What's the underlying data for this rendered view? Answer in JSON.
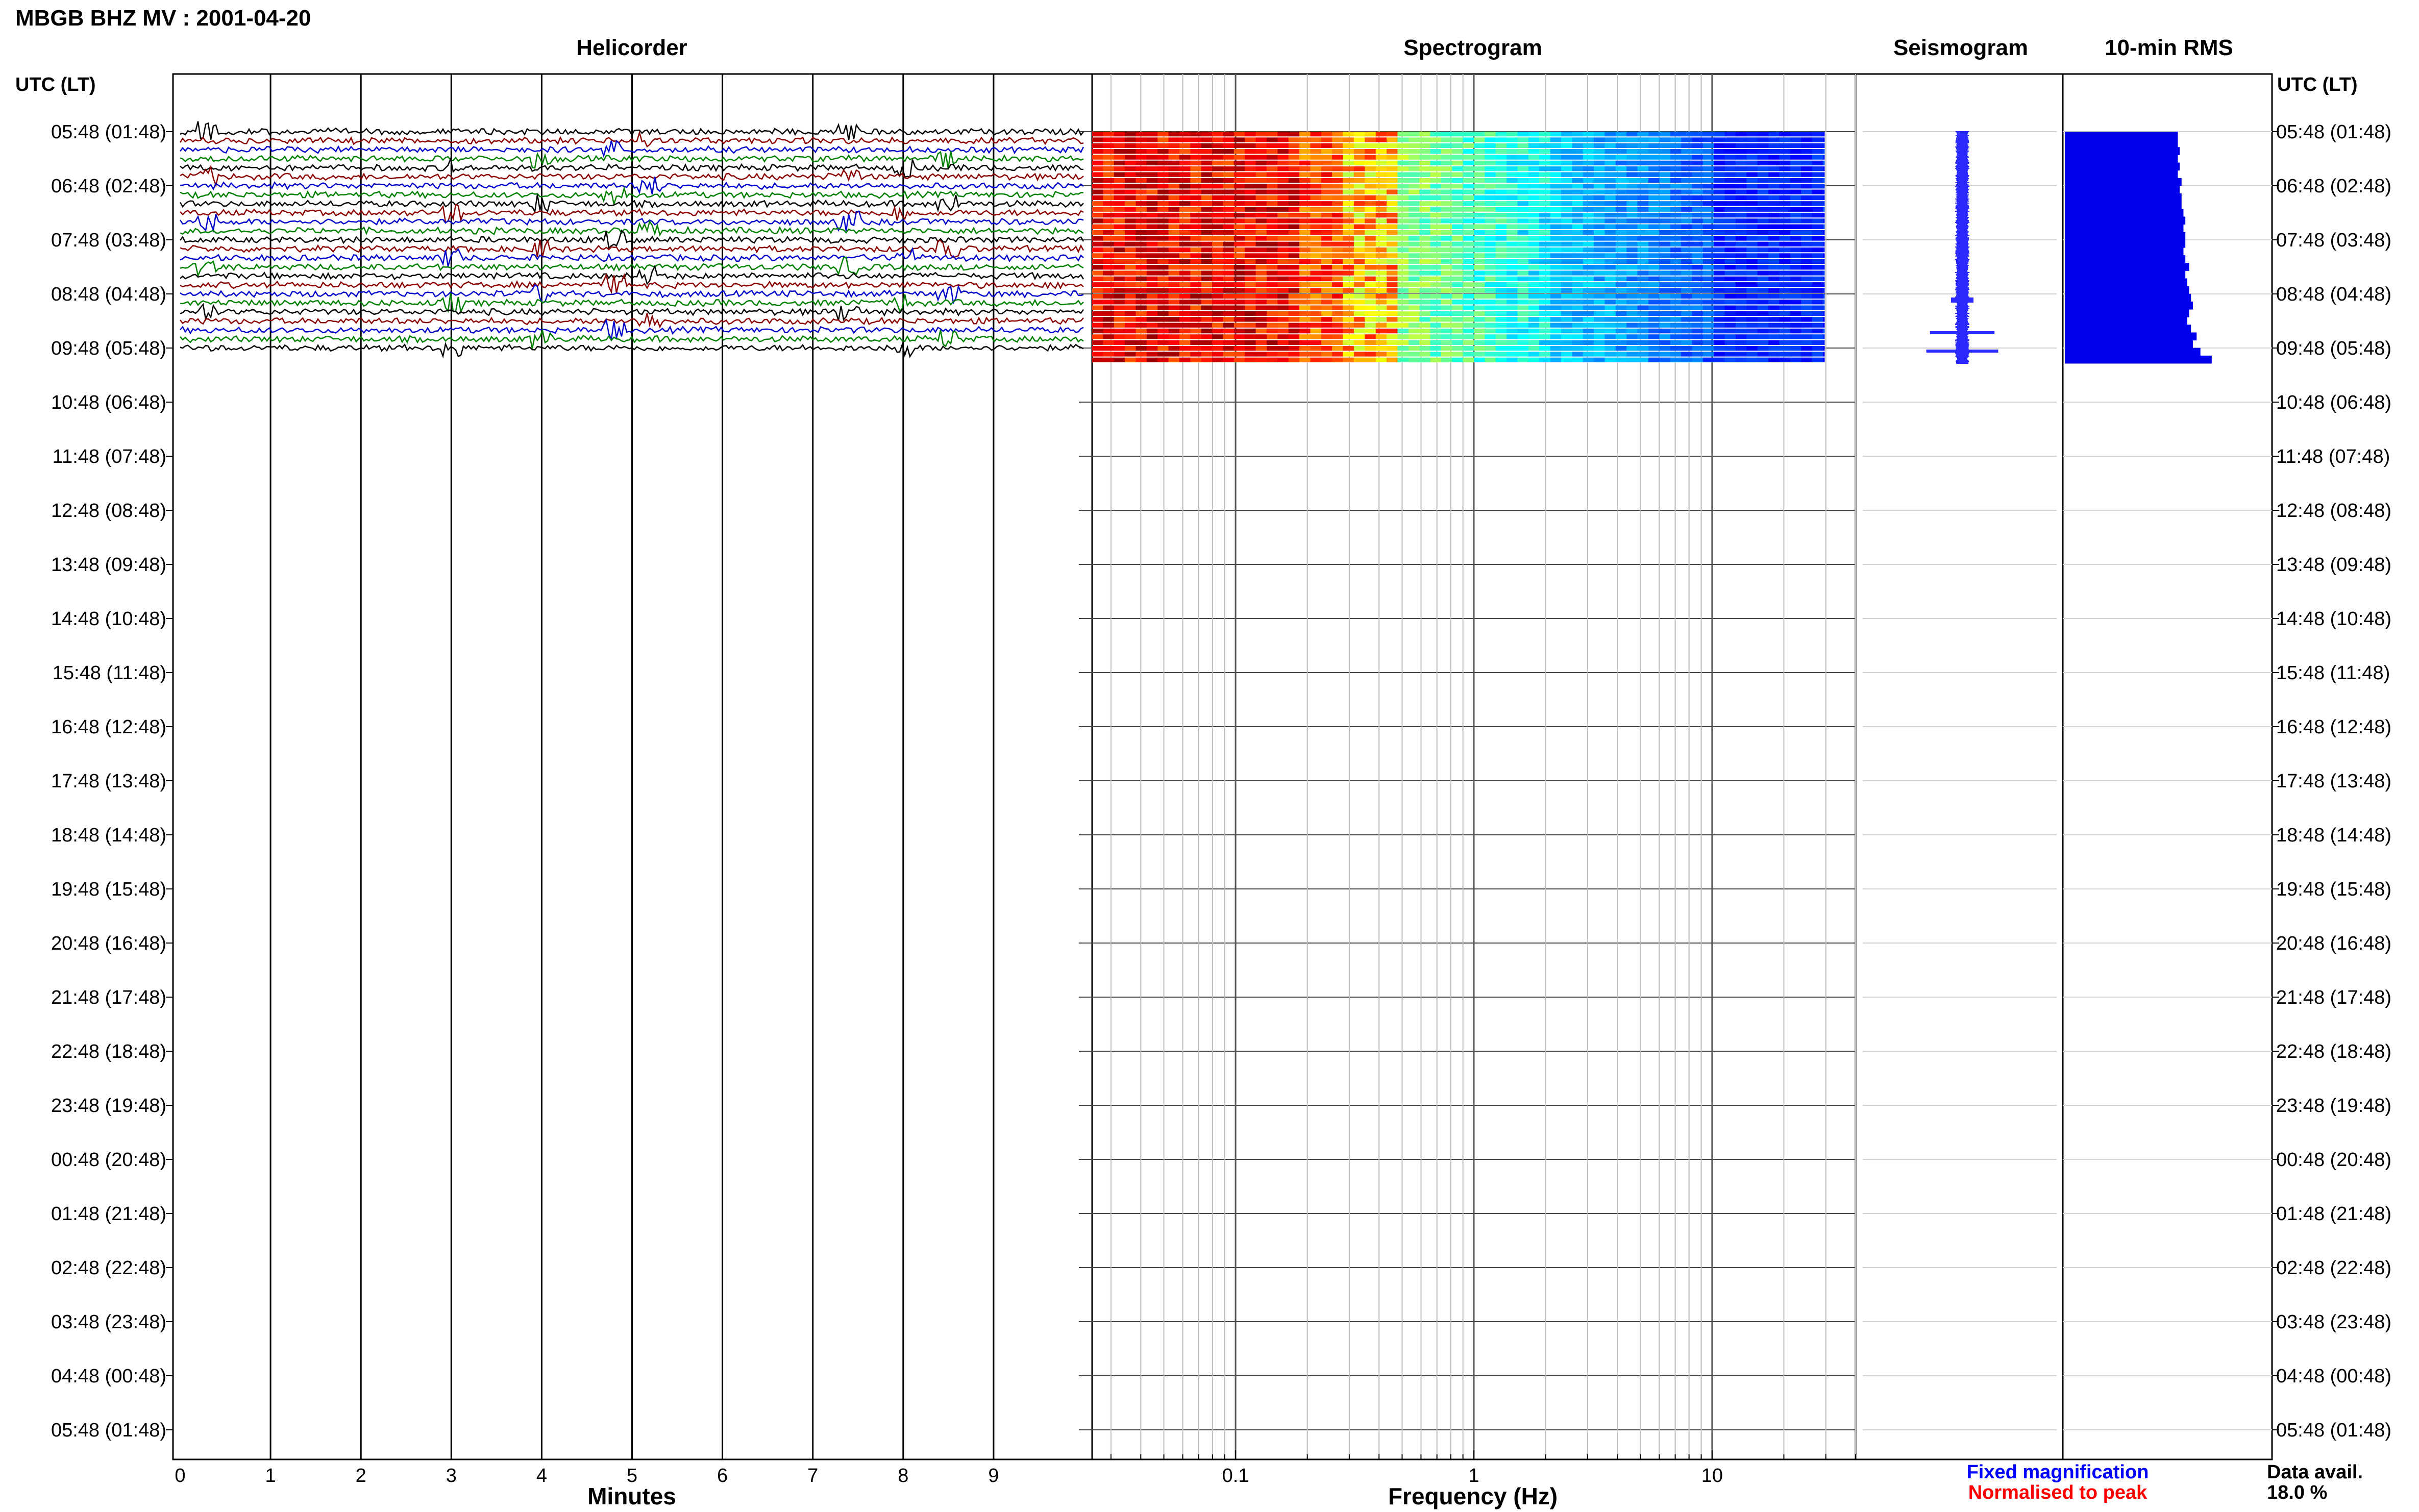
{
  "header": {
    "title": "MBGB BHZ MV : 2001-04-20",
    "utc_label_left": "UTC (LT)",
    "utc_label_right": "UTC (LT)"
  },
  "panels": {
    "helicorder": "Helicorder",
    "spectrogram": "Spectrogram",
    "seismogram": "Seismogram",
    "rms": "10-min RMS"
  },
  "axes": {
    "minutes_label": "Minutes",
    "frequency_label": "Frequency (Hz)",
    "minute_ticks": [
      "0",
      "1",
      "2",
      "3",
      "4",
      "5",
      "6",
      "7",
      "8",
      "9"
    ],
    "freq_ticks": [
      "0.1",
      "1",
      "10"
    ]
  },
  "rows": [
    "05:48 (01:48)",
    "06:48 (02:48)",
    "07:48 (03:48)",
    "08:48 (04:48)",
    "09:48 (05:48)",
    "10:48 (06:48)",
    "11:48 (07:48)",
    "12:48 (08:48)",
    "13:48 (09:48)",
    "14:48 (10:48)",
    "15:48 (11:48)",
    "16:48 (12:48)",
    "17:48 (13:48)",
    "18:48 (14:48)",
    "19:48 (15:48)",
    "20:48 (16:48)",
    "21:48 (17:48)",
    "22:48 (18:48)",
    "23:48 (19:48)",
    "00:48 (20:48)",
    "01:48 (21:48)",
    "02:48 (22:48)",
    "03:48 (23:48)",
    "04:48 (00:48)",
    "05:48 (01:48)"
  ],
  "legend": {
    "fixed": "Fixed magnification",
    "normalised": "Normalised to peak",
    "avail_label": "Data avail.",
    "avail_value": "18.0 %"
  },
  "colors": {
    "fixed": "#0000ff",
    "normalised": "#ff0000",
    "trace_colors": [
      "#000000",
      "#8b0000",
      "#0000cc",
      "#008000"
    ],
    "spectrogram_blue": "#0022cc",
    "rms_bar": "#0000ee"
  },
  "chart_data": [
    {
      "type": "line",
      "title": "Helicorder",
      "xlabel": "Minutes",
      "x_range": [
        0,
        10
      ],
      "rows_with_data": 5,
      "traces_per_hour": 6,
      "events_minutes": [
        0.3,
        3.0,
        4.0,
        4.8,
        5.2,
        7.4,
        8.0,
        8.5
      ]
    },
    {
      "type": "heatmap",
      "title": "Spectrogram",
      "xlabel": "Frequency (Hz)",
      "x_scale": "log",
      "x_range": [
        0.025,
        40
      ],
      "rows_with_data": 5
    },
    {
      "type": "bar",
      "title": "10-min RMS",
      "values": [
        0.6,
        0.6,
        0.61,
        0.6,
        0.61,
        0.6,
        0.62,
        0.61,
        0.62,
        0.62,
        0.63,
        0.64,
        0.63,
        0.64,
        0.64,
        0.63,
        0.64,
        0.66,
        0.64,
        0.65,
        0.66,
        0.67,
        0.68,
        0.66,
        0.65,
        0.67,
        0.7,
        0.68,
        0.72,
        0.78
      ]
    }
  ]
}
